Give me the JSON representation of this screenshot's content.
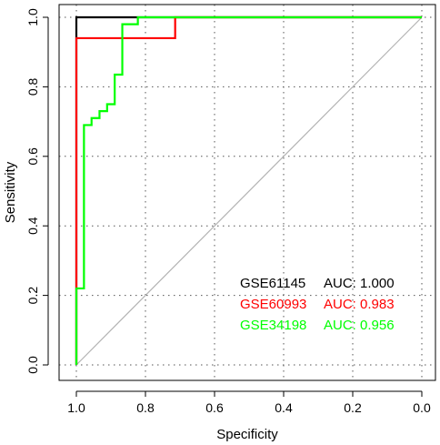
{
  "chart_data": {
    "type": "line",
    "title": "",
    "xlabel": "Specificity",
    "ylabel": "Sensitivity",
    "xlim": [
      1.0,
      0.0
    ],
    "ylim": [
      0.0,
      1.0
    ],
    "x_reversed": true,
    "grid": true,
    "x_ticks": [
      "1.0",
      "0.8",
      "0.6",
      "0.4",
      "0.2",
      "0.0"
    ],
    "y_ticks": [
      "0.0",
      "0.2",
      "0.4",
      "0.6",
      "0.8",
      "1.0"
    ],
    "reference_line": {
      "from": [
        1.0,
        0.0
      ],
      "to": [
        0.0,
        1.0
      ],
      "color": "#b3b3b3"
    },
    "legend_position": "bottom-right",
    "series": [
      {
        "name": "GSE61145",
        "auc_label": "AUC: 1.000",
        "color": "#000000",
        "points": [
          [
            1.0,
            0.0
          ],
          [
            1.0,
            1.0
          ],
          [
            0.81,
            1.0
          ],
          [
            0.0,
            1.0
          ]
        ]
      },
      {
        "name": "GSE60993",
        "auc_label": "AUC: 0.983",
        "color": "#ff0000",
        "points": [
          [
            1.0,
            0.0
          ],
          [
            1.0,
            0.22
          ],
          [
            1.0,
            0.94
          ],
          [
            0.714,
            0.94
          ],
          [
            0.714,
            1.0
          ],
          [
            0.0,
            1.0
          ]
        ]
      },
      {
        "name": "GSE34198",
        "auc_label": "AUC: 0.956",
        "color": "#00ff00",
        "points": [
          [
            1.0,
            0.0
          ],
          [
            1.0,
            0.22
          ],
          [
            0.978,
            0.22
          ],
          [
            0.978,
            0.69
          ],
          [
            0.956,
            0.69
          ],
          [
            0.956,
            0.71
          ],
          [
            0.933,
            0.71
          ],
          [
            0.933,
            0.73
          ],
          [
            0.911,
            0.73
          ],
          [
            0.911,
            0.75
          ],
          [
            0.889,
            0.75
          ],
          [
            0.889,
            0.835
          ],
          [
            0.867,
            0.835
          ],
          [
            0.867,
            0.98
          ],
          [
            0.822,
            0.98
          ],
          [
            0.822,
            1.0
          ],
          [
            0.0,
            1.0
          ]
        ]
      }
    ]
  }
}
